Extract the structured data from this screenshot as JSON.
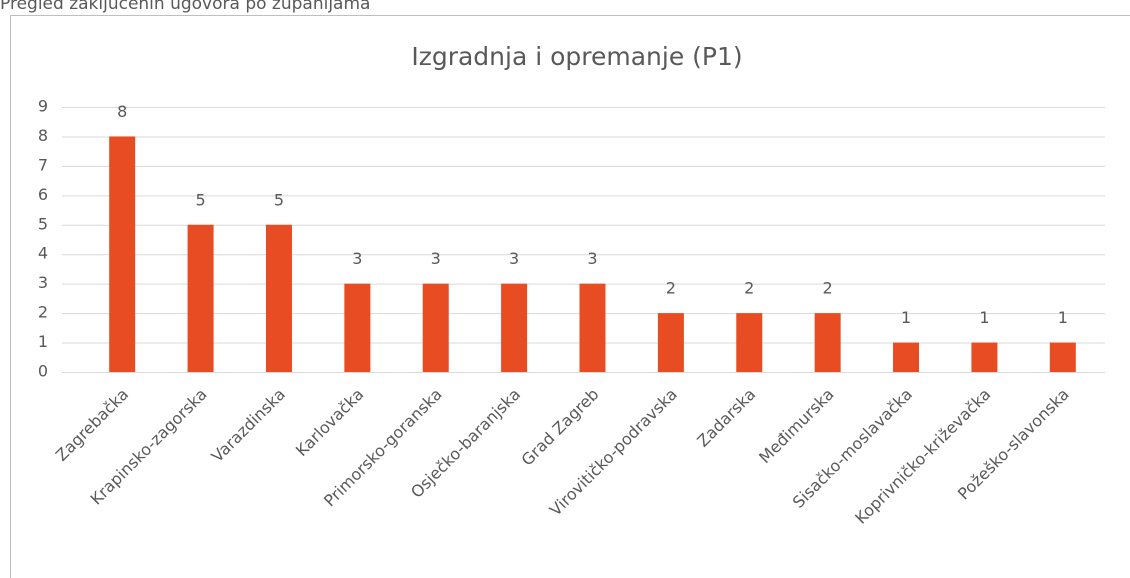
{
  "header": {
    "title": "Pregled zaključenih ugovora po županijama"
  },
  "chart_data": {
    "type": "bar",
    "title": "Izgradnja i opremanje (P1)",
    "categories": [
      "Zagrebačka",
      "Krapinsko-zagorska",
      "Varazdinska",
      "Karlovačka",
      "Primorsko-goranska",
      "Osječko-baranjska",
      "Grad Zagreb",
      "Virovitičko-podravska",
      "Zadarska",
      "Međimurska",
      "Sisačko-moslavačka",
      "Koprivničko-križevačka",
      "Požeško-slavonska"
    ],
    "values": [
      8,
      5,
      5,
      3,
      3,
      3,
      3,
      2,
      2,
      2,
      1,
      1,
      1
    ],
    "color": "#e84c22",
    "ylim": [
      0,
      9
    ],
    "yticks": [
      0,
      1,
      2,
      3,
      4,
      5,
      6,
      7,
      8,
      9
    ],
    "grid": true
  }
}
